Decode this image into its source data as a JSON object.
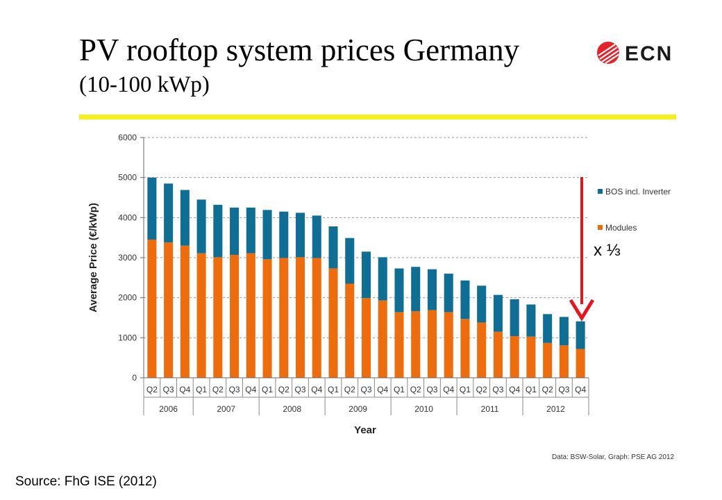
{
  "slide": {
    "title": "PV rooftop system prices Germany",
    "subtitle": "(10-100 kWp)",
    "logo_text": "ECN",
    "factor_label": "x ⅓",
    "credit": "Data: BSW-Solar, Graph: PSE AG 2012",
    "source": "Source: FhG ISE (2012)"
  },
  "colors": {
    "accent_rule": "#f4f01c",
    "bos": "#0f6e94",
    "modules": "#ef6c0c",
    "arrow": "#e8141c",
    "logo_red": "#e4232a"
  },
  "chart_data": {
    "type": "bar",
    "stacked": true,
    "xlabel": "Year",
    "ylabel": "Average Price (€/kWp)",
    "ylim": [
      0,
      6000
    ],
    "yticks": [
      0,
      1000,
      2000,
      3000,
      4000,
      5000,
      6000
    ],
    "grid": true,
    "legend_position": "right",
    "categories": [
      "Q2",
      "Q3",
      "Q4",
      "Q1",
      "Q2",
      "Q3",
      "Q4",
      "Q1",
      "Q2",
      "Q3",
      "Q4",
      "Q1",
      "Q2",
      "Q3",
      "Q4",
      "Q1",
      "Q2",
      "Q3",
      "Q4",
      "Q1",
      "Q2",
      "Q3",
      "Q4",
      "Q1",
      "Q2",
      "Q3",
      "Q4"
    ],
    "years": [
      {
        "label": "2006",
        "count": 3
      },
      {
        "label": "2007",
        "count": 4
      },
      {
        "label": "2008",
        "count": 4
      },
      {
        "label": "2009",
        "count": 4
      },
      {
        "label": "2010",
        "count": 4
      },
      {
        "label": "2011",
        "count": 4
      },
      {
        "label": "2012",
        "count": 4
      }
    ],
    "series": [
      {
        "name": "Modules",
        "values": [
          3450,
          3380,
          3300,
          3110,
          3010,
          3070,
          3110,
          2960,
          2990,
          3010,
          2990,
          2730,
          2350,
          1990,
          1930,
          1640,
          1660,
          1690,
          1640,
          1470,
          1380,
          1150,
          1040,
          1030,
          870,
          810,
          720
        ]
      },
      {
        "name": "BOS incl. Inverter",
        "values": [
          1550,
          1470,
          1390,
          1340,
          1310,
          1180,
          1140,
          1230,
          1160,
          1110,
          1060,
          1050,
          1140,
          1160,
          1080,
          1090,
          1110,
          1020,
          960,
          960,
          920,
          920,
          920,
          800,
          720,
          710,
          690
        ]
      }
    ],
    "legend": [
      "BOS incl. Inverter",
      "Modules"
    ]
  }
}
